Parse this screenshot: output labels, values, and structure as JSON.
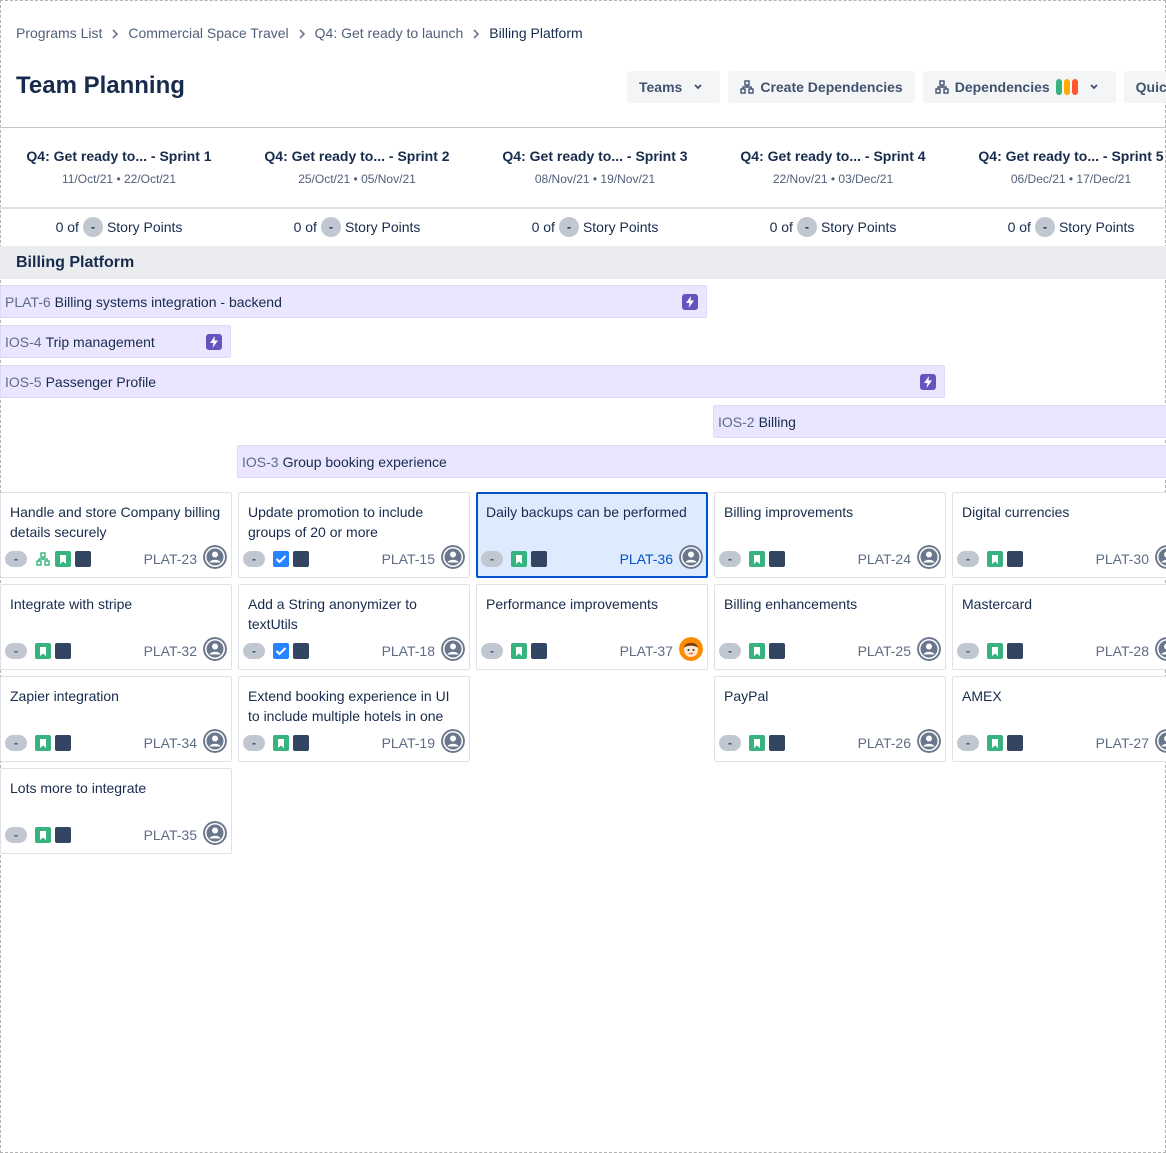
{
  "breadcrumb": [
    "Programs List",
    "Commercial Space Travel",
    "Q4: Get ready to launch",
    "Billing Platform"
  ],
  "page_title": "Team Planning",
  "toolbar": {
    "teams": "Teams",
    "create_dependencies": "Create Dependencies",
    "dependencies": "Dependencies",
    "quick": "Quic",
    "dependency_colors": [
      "#36B37E",
      "#FFAB00",
      "#FF5630"
    ]
  },
  "sprints": [
    {
      "name": "Q4: Get ready to... - Sprint 1",
      "dates": "11/Oct/21 • 22/Oct/21",
      "points_prefix": "0 of",
      "points_value": "-",
      "points_label": "Story Points"
    },
    {
      "name": "Q4: Get ready to... - Sprint 2",
      "dates": "25/Oct/21 • 05/Nov/21",
      "points_prefix": "0 of",
      "points_value": "-",
      "points_label": "Story Points"
    },
    {
      "name": "Q4: Get ready to... - Sprint 3",
      "dates": "08/Nov/21 • 19/Nov/21",
      "points_prefix": "0 of",
      "points_value": "-",
      "points_label": "Story Points"
    },
    {
      "name": "Q4: Get ready to... - Sprint 4",
      "dates": "22/Nov/21 • 03/Dec/21",
      "points_prefix": "0 of",
      "points_value": "-",
      "points_label": "Story Points"
    },
    {
      "name": "Q4: Get ready to... - Sprint 5",
      "dates": "06/Dec/21 • 17/Dec/21",
      "points_prefix": "0 of",
      "points_value": "-",
      "points_label": "Story Points"
    }
  ],
  "team": {
    "name": "Billing Platform"
  },
  "epics": [
    {
      "key": "PLAT-6",
      "title": "Billing systems integration - backend"
    },
    {
      "key": "IOS-4",
      "title": "Trip management"
    },
    {
      "key": "IOS-5",
      "title": "Passenger Profile"
    },
    {
      "key": "IOS-2",
      "title": "Billing"
    },
    {
      "key": "IOS-3",
      "title": "Group booking experience"
    }
  ],
  "cards": [
    {
      "title": "Handle and store Company billing details securely",
      "key": "PLAT-23",
      "estimate": "-",
      "type": "story",
      "dependency": true,
      "avatar": "default"
    },
    {
      "title": "Integrate with stripe",
      "key": "PLAT-32",
      "estimate": "-",
      "type": "story",
      "avatar": "default"
    },
    {
      "title": "Zapier integration",
      "key": "PLAT-34",
      "estimate": "-",
      "type": "story",
      "avatar": "default"
    },
    {
      "title": "Lots more to integrate",
      "key": "PLAT-35",
      "estimate": "-",
      "type": "story",
      "avatar": "default"
    },
    {
      "title": "Update promotion to include groups of 20 or more",
      "key": "PLAT-15",
      "estimate": "-",
      "type": "task",
      "avatar": "default"
    },
    {
      "title": "Add a String anonymizer to textUtils",
      "key": "PLAT-18",
      "estimate": "-",
      "type": "task",
      "avatar": "default"
    },
    {
      "title": "Extend booking experience in UI to include multiple hotels in one",
      "key": "PLAT-19",
      "estimate": "-",
      "type": "story",
      "avatar": "default"
    },
    {
      "title": "Daily backups can be performed",
      "key": "PLAT-36",
      "estimate": "-",
      "type": "story",
      "selected": true,
      "avatar": "default"
    },
    {
      "title": "Performance improvements",
      "key": "PLAT-37",
      "estimate": "-",
      "type": "story",
      "avatar": "user"
    },
    {
      "title": "Billing improvements",
      "key": "PLAT-24",
      "estimate": "-",
      "type": "story",
      "avatar": "default"
    },
    {
      "title": "Billing enhancements",
      "key": "PLAT-25",
      "estimate": "-",
      "type": "story",
      "avatar": "default"
    },
    {
      "title": "PayPal",
      "key": "PLAT-26",
      "estimate": "-",
      "type": "story",
      "avatar": "default"
    },
    {
      "title": "Digital currencies",
      "key": "PLAT-30",
      "estimate": "-",
      "type": "story",
      "avatar": "default"
    },
    {
      "title": "Mastercard",
      "key": "PLAT-28",
      "estimate": "-",
      "type": "story",
      "avatar": "default"
    },
    {
      "title": "AMEX",
      "key": "PLAT-27",
      "estimate": "-",
      "type": "story",
      "avatar": "default"
    }
  ]
}
